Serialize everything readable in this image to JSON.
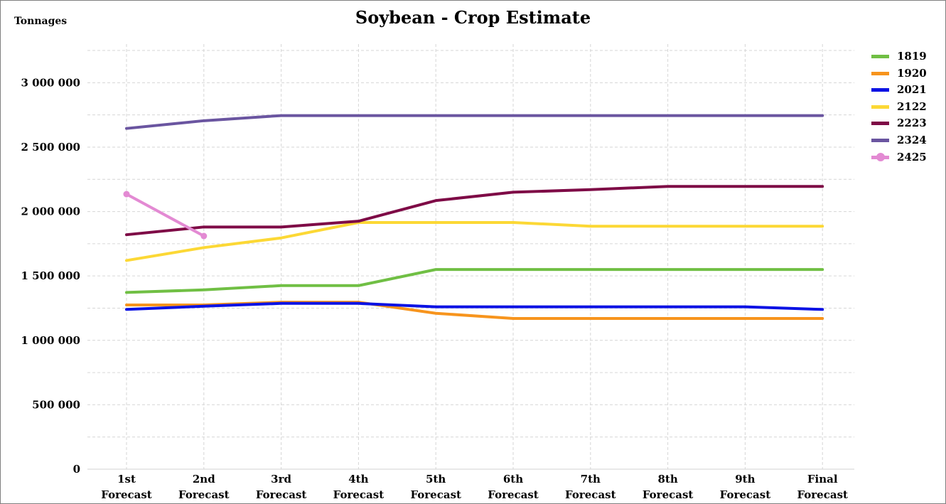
{
  "chart_data": {
    "type": "line",
    "title": "Soybean - Crop Estimate",
    "ylabel": "Tonnages",
    "xlabel": "",
    "ylim": [
      0,
      3000000
    ],
    "yticks": [
      0,
      500000,
      1000000,
      1500000,
      2000000,
      2500000,
      3000000
    ],
    "ytick_labels": [
      "0",
      "500 000",
      "1 000 000",
      "1 500 000",
      "2 000 000",
      "2 500 000",
      "3 000 000"
    ],
    "grid": true,
    "legend_position": "right",
    "categories": [
      [
        "1st",
        "Forecast"
      ],
      [
        "2nd",
        "Forecast"
      ],
      [
        "3rd",
        "Forecast"
      ],
      [
        "4th",
        "Forecast"
      ],
      [
        "5th",
        "Forecast"
      ],
      [
        "6th",
        "Forecast"
      ],
      [
        "7th",
        "Forecast"
      ],
      [
        "8th",
        "Forecast"
      ],
      [
        "9th",
        "Forecast"
      ],
      [
        "Final",
        "Forecast"
      ]
    ],
    "series": [
      {
        "name": "1819",
        "color": "#70bf44",
        "values": [
          1372000,
          1392000,
          1425000,
          1425000,
          1550000,
          1550000,
          1550000,
          1550000,
          1550000,
          1550000
        ]
      },
      {
        "name": "1920",
        "color": "#f7941d",
        "values": [
          1275000,
          1275000,
          1296000,
          1296000,
          1210000,
          1170000,
          1170000,
          1170000,
          1170000,
          1170000
        ]
      },
      {
        "name": "2021",
        "color": "#0b12e4",
        "values": [
          1240000,
          1265000,
          1287000,
          1287000,
          1260000,
          1260000,
          1260000,
          1260000,
          1260000,
          1240000
        ]
      },
      {
        "name": "2122",
        "color": "#fcd835",
        "values": [
          1620000,
          1720000,
          1795000,
          1915000,
          1915000,
          1915000,
          1886000,
          1886000,
          1886000,
          1886000
        ]
      },
      {
        "name": "2223",
        "color": "#7e0a46",
        "values": [
          1820000,
          1880000,
          1880000,
          1925000,
          2085000,
          2150000,
          2170000,
          2195000,
          2195000,
          2195000
        ]
      },
      {
        "name": "2324",
        "color": "#6a55a0",
        "values": [
          2645000,
          2705000,
          2745000,
          2745000,
          2745000,
          2745000,
          2745000,
          2745000,
          2745000,
          2745000
        ]
      },
      {
        "name": "2425",
        "color": "#e38ad3",
        "markers": true,
        "values": [
          2135000,
          1810000,
          null,
          null,
          null,
          null,
          null,
          null,
          null,
          null
        ]
      }
    ]
  }
}
